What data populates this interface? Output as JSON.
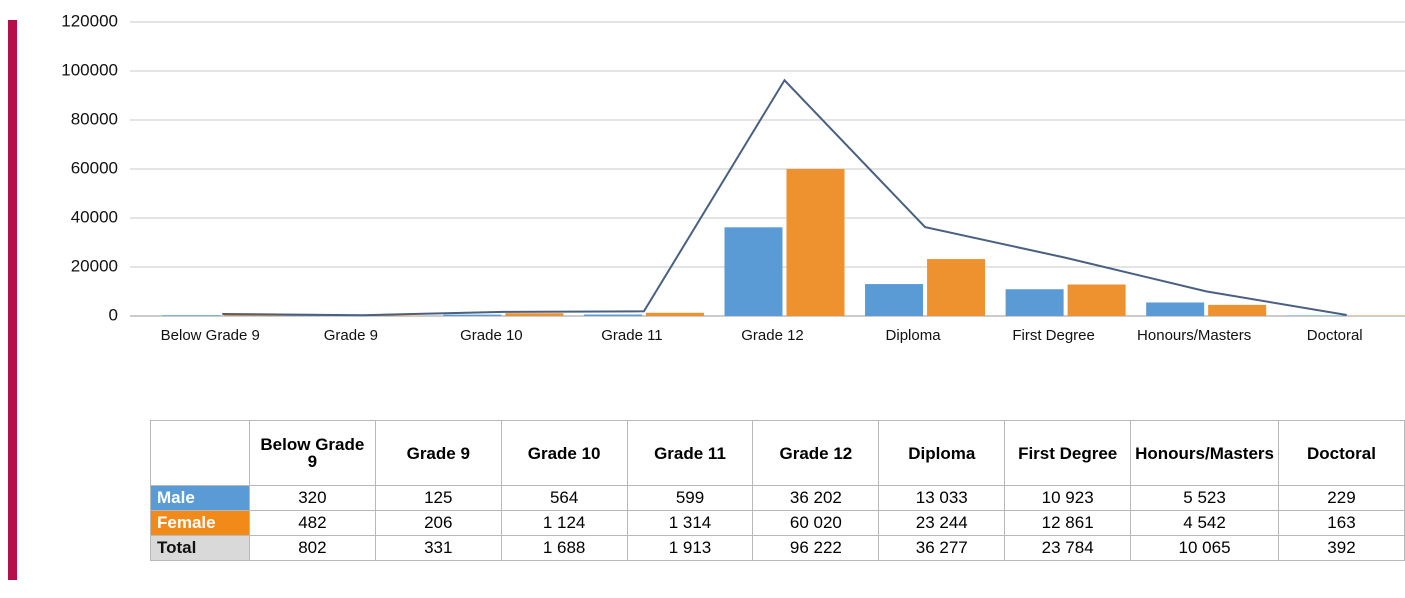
{
  "chart_data": {
    "type": "bar",
    "categories": [
      "Below Grade 9",
      "Grade 9",
      "Grade 10",
      "Grade 11",
      "Grade 12",
      "Diploma",
      "First Degree",
      "Honours/Masters",
      "Doctoral"
    ],
    "series": [
      {
        "name": "Male",
        "type": "bar",
        "color": "#5b9bd5",
        "values": [
          320,
          125,
          564,
          599,
          36202,
          13033,
          10923,
          5523,
          229
        ],
        "value_labels": [
          "320",
          "125",
          "564",
          "599",
          "36 202",
          "13 033",
          "10 923",
          "5 523",
          "229"
        ]
      },
      {
        "name": "Female",
        "type": "bar",
        "color": "#ee9230",
        "values": [
          482,
          206,
          1124,
          1314,
          60020,
          23244,
          12861,
          4542,
          163
        ],
        "value_labels": [
          "482",
          "206",
          "1 124",
          "1 314",
          "60 020",
          "23 244",
          "12 861",
          "4 542",
          "163"
        ]
      },
      {
        "name": "Total",
        "type": "line",
        "color": "#4a6080",
        "values": [
          802,
          331,
          1688,
          1913,
          96222,
          36277,
          23784,
          10065,
          392
        ],
        "value_labels": [
          "802",
          "331",
          "1 688",
          "1 913",
          "96 222",
          "36 277",
          "23 784",
          "10 065",
          "392"
        ]
      }
    ],
    "ylim": [
      0,
      120000
    ],
    "yticks": [
      0,
      20000,
      40000,
      60000,
      80000,
      100000,
      120000
    ],
    "grid": true
  }
}
